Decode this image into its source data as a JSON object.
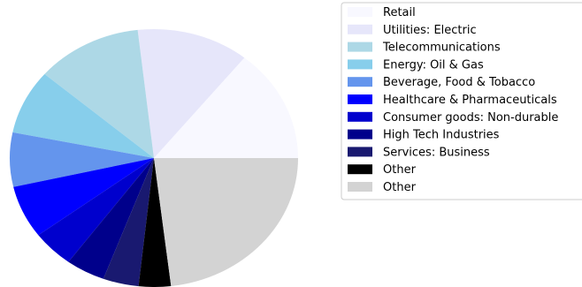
{
  "chart_data": {
    "type": "pie",
    "title": "",
    "start_angle_deg": 0,
    "direction": "counterclockwise",
    "legend_position": "right",
    "slices": [
      {
        "label": "Retail",
        "value": 14.2,
        "color": "#f8f8ff"
      },
      {
        "label": "Utilities: Electric",
        "value": 12.6,
        "color": "#e6e6fa"
      },
      {
        "label": "Telecommunications",
        "value": 11.9,
        "color": "#add8e6"
      },
      {
        "label": "Energy: Oil & Gas",
        "value": 8.1,
        "color": "#87ceeb"
      },
      {
        "label": "Beverage, Food & Tobacco",
        "value": 6.8,
        "color": "#6495ed"
      },
      {
        "label": "Healthcare & Pharmaceuticals",
        "value": 6.6,
        "color": "#0000ff"
      },
      {
        "label": "Consumer goods: Non-durable",
        "value": 4.7,
        "color": "#0000cd"
      },
      {
        "label": "High Tech Industries",
        "value": 4.4,
        "color": "#00008b"
      },
      {
        "label": "Services: Business",
        "value": 4.0,
        "color": "#191970"
      },
      {
        "label": "Other",
        "value": 3.6,
        "color": "#000000"
      },
      {
        "label": "Other",
        "value": 23.1,
        "color": "#d3d3d3"
      }
    ]
  }
}
